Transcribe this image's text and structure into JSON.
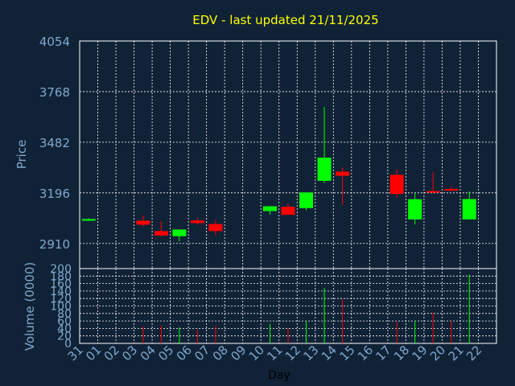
{
  "colors": {
    "background": "#102236",
    "plot_frame": "#ffffff",
    "grid": "#ffffff",
    "title": "#ffff00",
    "axis_text": "#7fa8cc",
    "label_text": "#000000",
    "up": "#00ff00",
    "down": "#ff0000"
  },
  "chart_data": {
    "type": "candlestick",
    "title": "EDV - last updated 21/11/2025",
    "xlabel": "Day",
    "ylabel": "Price",
    "volume_ylabel": "Volume (0000)",
    "price_ylim": [
      2768,
      4054
    ],
    "price_ticks": [
      2910,
      3196,
      3482,
      3768,
      4054
    ],
    "volume_ylim": [
      0,
      200
    ],
    "volume_ticks": [
      0,
      20,
      40,
      60,
      80,
      100,
      120,
      140,
      160,
      180,
      200
    ],
    "grid": true,
    "x_ticks": [
      "31",
      "01",
      "02",
      "03",
      "04",
      "05",
      "06",
      "07",
      "08",
      "09",
      "10",
      "11",
      "12",
      "13",
      "14",
      "15",
      "16",
      "17",
      "18",
      "19",
      "20",
      "21",
      "22"
    ],
    "candles": [
      {
        "day": "31",
        "open": 3045,
        "high": 3052,
        "low": 3042,
        "close": 3048,
        "volume": 0
      },
      {
        "day": "03",
        "open": 3039,
        "high": 3068,
        "low": 3006,
        "close": 3016,
        "volume": 45
      },
      {
        "day": "04",
        "open": 2980,
        "high": 3037,
        "low": 2948,
        "close": 2955,
        "volume": 48
      },
      {
        "day": "05",
        "open": 2951,
        "high": 2985,
        "low": 2921,
        "close": 2989,
        "volume": 43
      },
      {
        "day": "06",
        "open": 3040,
        "high": 3053,
        "low": 3015,
        "close": 3025,
        "volume": 37
      },
      {
        "day": "07",
        "open": 3020,
        "high": 3043,
        "low": 2956,
        "close": 2980,
        "volume": 47
      },
      {
        "day": "10",
        "open": 3093,
        "high": 3122,
        "low": 3073,
        "close": 3120,
        "volume": 52
      },
      {
        "day": "11",
        "open": 3118,
        "high": 3136,
        "low": 3072,
        "close": 3072,
        "volume": 40
      },
      {
        "day": "12",
        "open": 3110,
        "high": 3201,
        "low": 3098,
        "close": 3198,
        "volume": 60
      },
      {
        "day": "13",
        "open": 3264,
        "high": 3681,
        "low": 3252,
        "close": 3395,
        "volume": 148
      },
      {
        "day": "14",
        "open": 3316,
        "high": 3340,
        "low": 3128,
        "close": 3292,
        "volume": 118
      },
      {
        "day": "17",
        "open": 3298,
        "high": 3330,
        "low": 3170,
        "close": 3190,
        "volume": 58
      },
      {
        "day": "18",
        "open": 3046,
        "high": 3196,
        "low": 3017,
        "close": 3160,
        "volume": 60
      },
      {
        "day": "19",
        "open": 3206,
        "high": 3312,
        "low": 3193,
        "close": 3202,
        "volume": 82
      },
      {
        "day": "20",
        "open": 3218,
        "high": 3232,
        "low": 3204,
        "close": 3212,
        "volume": 60
      },
      {
        "day": "21",
        "open": 3046,
        "high": 3204,
        "low": 3046,
        "close": 3161,
        "volume": 184
      }
    ]
  }
}
